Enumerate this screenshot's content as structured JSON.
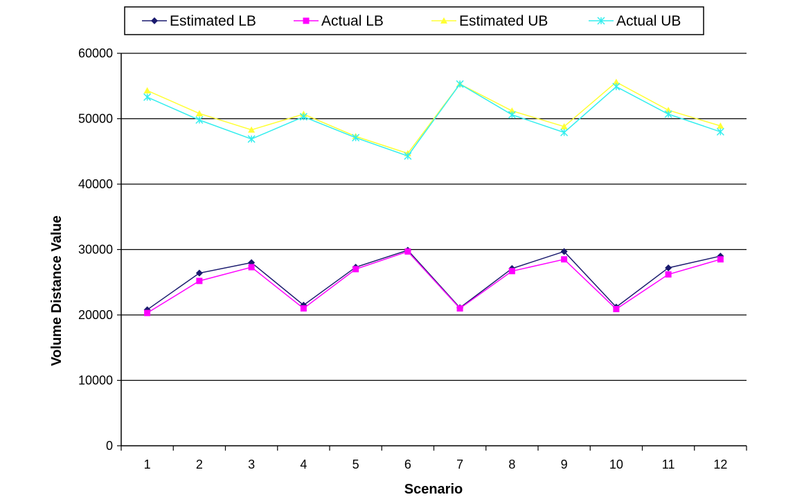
{
  "chart_data": {
    "type": "line",
    "title": "",
    "xlabel": "Scenario",
    "ylabel": "Volume Distance Value",
    "categories": [
      "1",
      "2",
      "3",
      "4",
      "5",
      "6",
      "7",
      "8",
      "9",
      "10",
      "11",
      "12"
    ],
    "ylim": [
      0,
      60000
    ],
    "yticks": [
      "0",
      "10000",
      "20000",
      "30000",
      "40000",
      "50000",
      "60000"
    ],
    "grid": "horizontal",
    "legend_position": "top",
    "series": [
      {
        "name": "Estimated LB",
        "color": "#1a1a6e",
        "marker": "diamond",
        "values": [
          20800,
          26400,
          28000,
          21500,
          27300,
          29900,
          21100,
          27100,
          29700,
          21200,
          27200,
          29000
        ]
      },
      {
        "name": "Actual LB",
        "color": "#ff00ff",
        "marker": "square",
        "values": [
          20300,
          25200,
          27300,
          21000,
          27000,
          29700,
          21000,
          26700,
          28500,
          20900,
          26200,
          28500
        ]
      },
      {
        "name": "Estimated UB",
        "color": "#ffff33",
        "marker": "triangle",
        "values": [
          54300,
          50800,
          48300,
          50700,
          47300,
          44700,
          55300,
          51200,
          48800,
          55600,
          51300,
          48900
        ]
      },
      {
        "name": "Actual UB",
        "color": "#33eeee",
        "marker": "x",
        "values": [
          53300,
          49800,
          46900,
          50300,
          47100,
          44300,
          55300,
          50600,
          47900,
          54900,
          50700,
          48000
        ]
      }
    ]
  }
}
